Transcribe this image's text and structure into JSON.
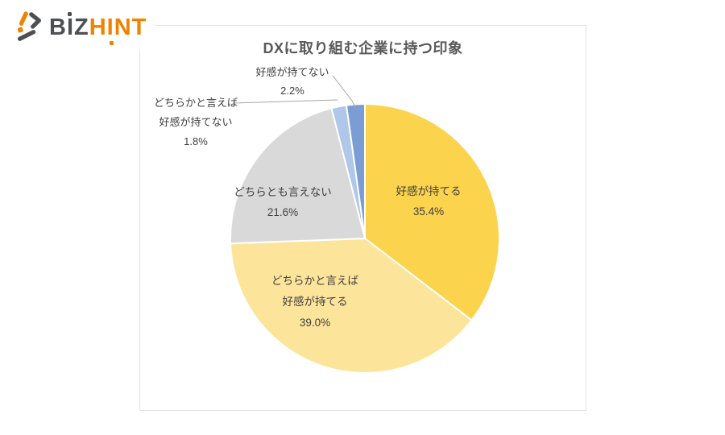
{
  "page": {
    "background": "#FFFFFF"
  },
  "logo": {
    "brand_dark": "BIZ",
    "brand_orange": "HINT",
    "orange_color": "#F18101",
    "dark_color": "#4D4F53"
  },
  "chart_data": {
    "type": "pie",
    "title": "DXに取り組む企業に持つ印象",
    "direction": "clockwise",
    "start_angle_deg": 0,
    "legend_position": "none",
    "title_color": "#595959",
    "label_color": "#3F3F3F",
    "leader_line_color": "#A6A6A6",
    "slice_border_color": "#FFFFFF",
    "slices": [
      {
        "label": "好感が持てる",
        "value": 35.4,
        "pct_text": "35.4%",
        "color": "#FBD34D",
        "label_lines": [
          "好感が持てる"
        ],
        "label_placement": "inside"
      },
      {
        "label": "どちらかと言えば好感が持てる",
        "value": 39.0,
        "pct_text": "39.0%",
        "color": "#FDE49B",
        "label_lines": [
          "どちらかと言えば",
          "好感が持てる"
        ],
        "label_placement": "inside"
      },
      {
        "label": "どちらとも言えない",
        "value": 21.6,
        "pct_text": "21.6%",
        "color": "#D9D9D9",
        "label_lines": [
          "どちらとも言えない"
        ],
        "label_placement": "inside"
      },
      {
        "label": "どちらかと言えば好感が持てない",
        "value": 1.8,
        "pct_text": "1.8%",
        "color": "#AFC7E8",
        "label_lines": [
          "どちらかと言えば",
          "好感が持てない"
        ],
        "label_placement": "outside-left"
      },
      {
        "label": "好感が持てない",
        "value": 2.2,
        "pct_text": "2.2%",
        "color": "#7C9DD4",
        "label_lines": [
          "好感が持てない"
        ],
        "label_placement": "outside-top"
      }
    ]
  }
}
